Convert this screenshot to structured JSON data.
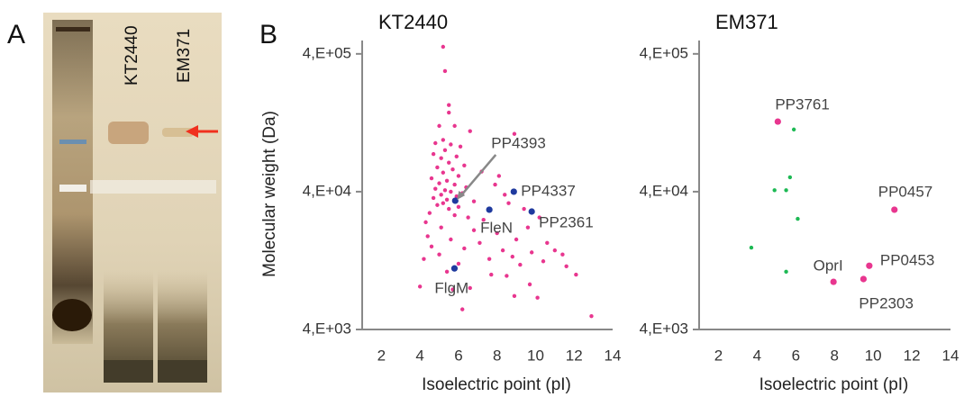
{
  "figure": {
    "panel_a": "A",
    "panel_b": "B",
    "lanes": [
      "KT2440",
      "EM371"
    ]
  },
  "chart_data": [
    {
      "type": "scatter",
      "title": "KT2440",
      "y_label": "Molecular weight (Da)",
      "x_label": "Isoelectric point (pI)",
      "xlim": [
        1,
        14
      ],
      "xticks": [
        2,
        4,
        6,
        8,
        10,
        12,
        14
      ],
      "ylim": [
        4000,
        500000
      ],
      "log_y": true,
      "yticks": [
        {
          "value": 4000,
          "label": "4,E+03"
        },
        {
          "value": 40000,
          "label": "4,E+04"
        },
        {
          "value": 400000,
          "label": "4,E+05"
        }
      ],
      "grid": false,
      "series": [
        {
          "color": "#e8368f",
          "x": [
            5.2,
            5.3,
            5.5,
            5.5,
            5.0,
            5.8,
            6.6,
            5.2,
            4.8,
            5.6,
            6.1,
            5.3,
            4.7,
            5.9,
            5.1,
            8.9,
            5.5,
            6.3,
            4.9,
            5.7,
            5.2,
            6.0,
            4.6,
            5.4,
            7.2,
            8.1,
            5.0,
            5.8,
            6.4,
            4.8,
            5.3,
            5.6,
            6.2,
            5.1,
            5.9,
            4.7,
            5.4,
            7.9,
            8.4,
            6.8,
            5.2,
            4.9,
            6.0,
            5.5,
            8.6,
            9.4,
            4.5,
            5.8,
            6.5,
            7.3,
            4.3,
            9.6,
            10.2,
            5.1,
            6.8,
            8.0,
            4.4,
            5.6,
            7.1,
            9.0,
            10.6,
            4.6,
            6.3,
            8.3,
            9.8,
            11.0,
            11.4,
            5.0,
            7.6,
            8.8,
            10.4,
            4.2,
            6.0,
            9.2,
            11.6,
            12.1,
            5.4,
            7.7,
            8.5,
            9.7,
            4.0,
            6.6,
            8.9,
            5.7,
            10.1,
            12.9,
            6.2
          ],
          "values": [
            450000,
            300000,
            170000,
            150000,
            120000,
            120000,
            110000,
            95000,
            90000,
            88000,
            85000,
            80000,
            75000,
            72000,
            70000,
            105000,
            65000,
            62000,
            60000,
            58000,
            55000,
            52000,
            50000,
            48000,
            56000,
            52000,
            46000,
            45000,
            43000,
            42000,
            41000,
            40000,
            39000,
            38000,
            37000,
            36000,
            35000,
            45000,
            38000,
            34000,
            33000,
            32000,
            31000,
            30000,
            33000,
            30000,
            28000,
            27000,
            26000,
            25000,
            24000,
            22000,
            26000,
            22000,
            21000,
            20000,
            19000,
            18000,
            17000,
            18000,
            17000,
            16000,
            15500,
            15000,
            14500,
            15000,
            14000,
            14000,
            13000,
            13500,
            12500,
            13000,
            12000,
            11800,
            11500,
            10000,
            10500,
            10000,
            9800,
            8500,
            8200,
            8000,
            7000,
            7800,
            6800,
            5000,
            5600
          ]
        },
        {
          "color": "#1f3a9e",
          "x": [
            5.83,
            8.87,
            7.6,
            9.8,
            5.79
          ],
          "values": [
            34400,
            40000,
            29600,
            28700,
            11100
          ],
          "labels": [
            "PP4393",
            "PP4337",
            "FleN",
            "PP2361",
            "FlgM"
          ]
        }
      ]
    },
    {
      "type": "scatter",
      "title": "EM371",
      "x_label": "Isoelectric point (pI)",
      "xlim": [
        1,
        14
      ],
      "xticks": [
        2,
        4,
        6,
        8,
        10,
        12,
        14
      ],
      "ylim": [
        4000,
        500000
      ],
      "log_y": true,
      "yticks": [
        {
          "value": 4000,
          "label": "4,E+03"
        },
        {
          "value": 40000,
          "label": "4,E+04"
        },
        {
          "value": 400000,
          "label": "4,E+05"
        }
      ],
      "grid": false,
      "series": [
        {
          "color": "#1db954",
          "x": [
            5.9,
            5.7,
            4.9,
            5.5,
            6.1,
            3.7,
            5.5
          ],
          "values": [
            113000,
            50900,
            41000,
            41000,
            25400,
            15700,
            10500
          ]
        },
        {
          "color": "#e8368f",
          "x": [
            5.07,
            11.1,
            7.95,
            9.8,
            9.5
          ],
          "values": [
            129000,
            29600,
            8870,
            11600,
            9290
          ],
          "labels": [
            "PP3761",
            "PP0457",
            "OprI",
            "PP0453",
            "PP2303"
          ]
        }
      ]
    }
  ]
}
